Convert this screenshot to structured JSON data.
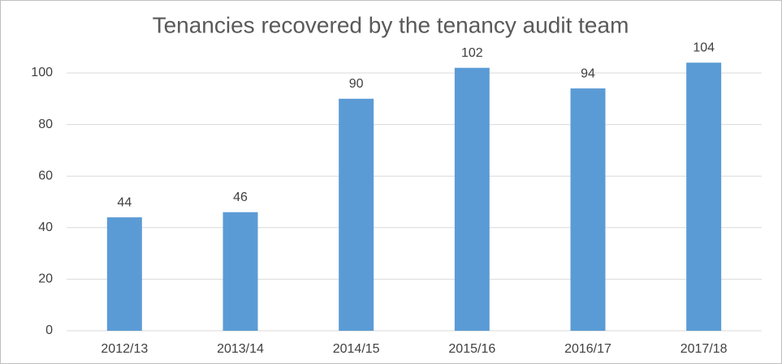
{
  "chart_data": {
    "type": "bar",
    "title": "Tenancies recovered by the tenancy audit team",
    "categories": [
      "2012/13",
      "2013/14",
      "2014/15",
      "2015/16",
      "2016/17",
      "2017/18"
    ],
    "values": [
      44,
      46,
      90,
      102,
      94,
      104
    ],
    "color": "#5b9bd5",
    "ylim": [
      0,
      120
    ],
    "yticks": [
      0,
      20,
      40,
      60,
      80,
      100
    ],
    "grid": true
  }
}
